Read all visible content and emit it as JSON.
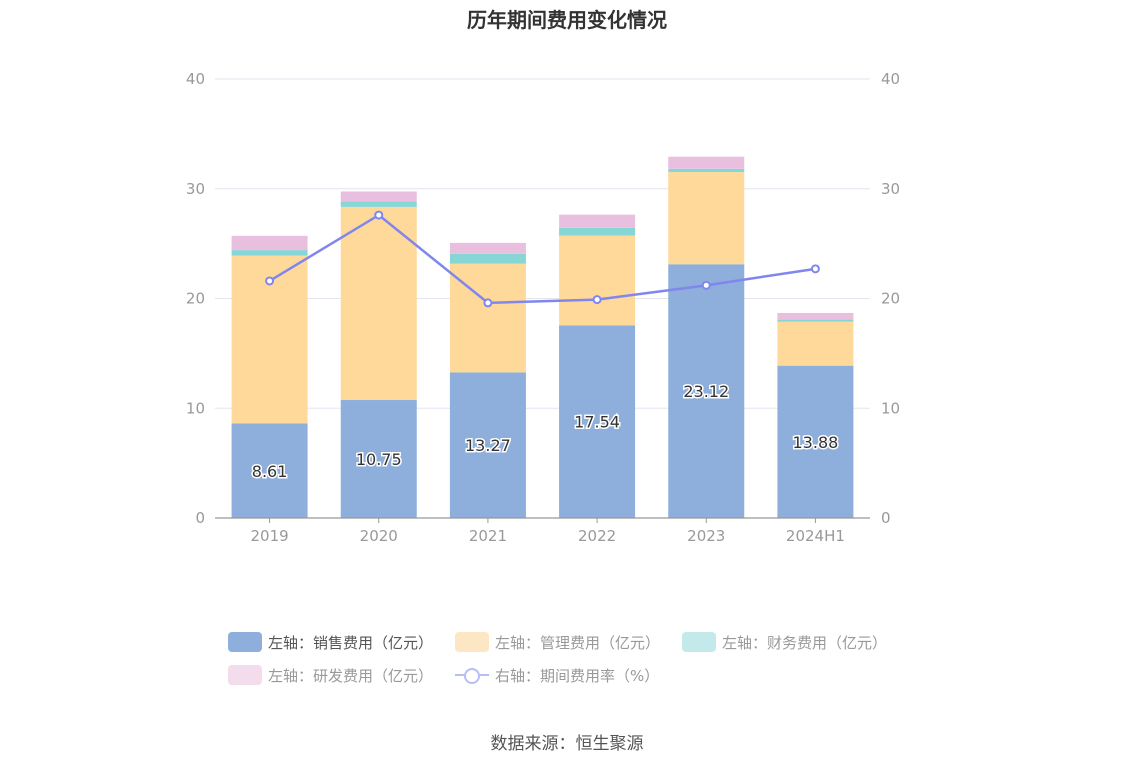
{
  "source": "数据来源：恒生聚源",
  "chart_data": {
    "type": "bar",
    "title": "历年期间费用变化情况",
    "categories": [
      "2019",
      "2020",
      "2021",
      "2022",
      "2023",
      "2024H1"
    ],
    "stacked": true,
    "left_axis": {
      "ylim": [
        0,
        40
      ],
      "ticks": [
        "0",
        "10",
        "20",
        "30",
        "40"
      ]
    },
    "right_axis": {
      "ylim": [
        0,
        40
      ],
      "ticks": [
        "0",
        "10",
        "20",
        "30",
        "40"
      ]
    },
    "grid": true,
    "legend_position": "bottom",
    "series": [
      {
        "name": "左轴：销售费用（亿元）",
        "axis": "left",
        "type": "bar",
        "color": "#8eaedb",
        "values": [
          8.61,
          10.75,
          13.27,
          17.54,
          23.12,
          13.88
        ],
        "show_labels": true
      },
      {
        "name": "左轴：管理费用（亿元）",
        "axis": "left",
        "type": "bar",
        "color": "#ffd99a",
        "values": [
          15.3,
          17.6,
          9.9,
          8.2,
          8.4,
          4.0
        ]
      },
      {
        "name": "左轴：财务费用（亿元）",
        "axis": "left",
        "type": "bar",
        "color": "#86d6d6",
        "values": [
          0.5,
          0.5,
          0.9,
          0.7,
          0.3,
          0.2
        ]
      },
      {
        "name": "左轴：研发费用（亿元）",
        "axis": "left",
        "type": "bar",
        "color": "#e8bfdf",
        "values": [
          1.3,
          0.9,
          1.0,
          1.2,
          1.1,
          0.6
        ]
      },
      {
        "name": "右轴：期间费用率（%）",
        "axis": "right",
        "type": "line",
        "color": "#7f86ee",
        "values": [
          21.6,
          27.6,
          19.6,
          19.9,
          21.2,
          22.7
        ]
      }
    ]
  }
}
